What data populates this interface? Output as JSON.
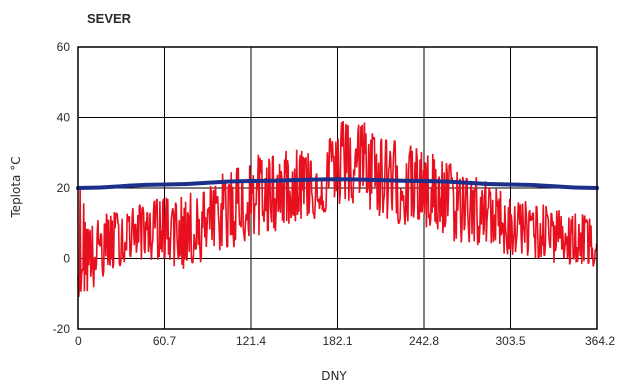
{
  "chart_data": {
    "type": "line",
    "title": "SEVER",
    "xlabel": "DNY",
    "ylabel": "Teplota °C",
    "xlim": [
      0,
      364.2
    ],
    "ylim": [
      -20,
      60
    ],
    "x_ticks": [
      "0",
      "60.7",
      "121.4",
      "182.1",
      "242.8",
      "303.5",
      "364.2"
    ],
    "y_ticks": [
      "-20",
      "0",
      "20",
      "40",
      "60"
    ],
    "grid": true,
    "colors": {
      "daily": "#e8101e",
      "trend": "#1c2f8a",
      "grid": "#000000"
    },
    "series": [
      {
        "kind": "noisy-daily",
        "x": [
          0,
          10,
          20,
          30,
          40,
          50,
          60,
          70,
          80,
          90,
          100,
          110,
          120,
          130,
          140,
          150,
          160,
          170,
          180,
          190,
          200,
          210,
          220,
          230,
          240,
          250,
          260,
          270,
          280,
          290,
          300,
          310,
          320,
          330,
          340,
          350,
          364
        ],
        "values": [
          0,
          2,
          5,
          6,
          8,
          9,
          10,
          9,
          10,
          10,
          11,
          13,
          15,
          17,
          18,
          20,
          21,
          21,
          25,
          27,
          25,
          24,
          22,
          21,
          20,
          18,
          16,
          15,
          14,
          12,
          10,
          9,
          8,
          8,
          7,
          8,
          9
        ],
        "min": [
          -11,
          -10,
          -5,
          -2,
          0,
          -1,
          0,
          -4,
          -3,
          0,
          2,
          3,
          5,
          6,
          8,
          10,
          11,
          11,
          15,
          15,
          14,
          12,
          10,
          9,
          8,
          7,
          5,
          4,
          3,
          3,
          1,
          0,
          0,
          -1,
          -2,
          -3,
          -3
        ],
        "max": [
          24,
          10,
          13,
          14,
          15,
          16,
          18,
          17,
          19,
          20,
          24,
          27,
          29,
          30,
          30,
          31,
          33,
          34,
          36,
          43,
          40,
          37,
          35,
          33,
          31,
          30,
          28,
          25,
          24,
          21,
          19,
          17,
          16,
          15,
          14,
          13,
          13
        ]
      },
      {
        "kind": "smooth-trend",
        "x": [
          0,
          60.7,
          121.4,
          182.1,
          242.8,
          303.5,
          364.2
        ],
        "values": [
          20,
          21,
          22,
          22.5,
          22,
          21,
          20
        ]
      }
    ]
  }
}
